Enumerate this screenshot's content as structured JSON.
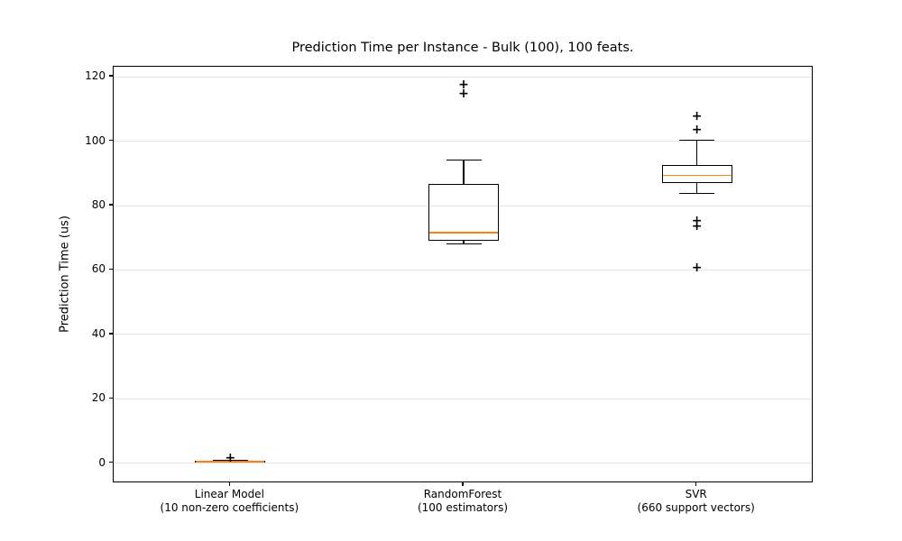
{
  "figure": {
    "background": "#ffffff"
  },
  "chart_data": {
    "type": "boxplot",
    "title": "Prediction Time per Instance - Bulk (100), 100 feats.",
    "ylabel": "Prediction Time (us)",
    "xlabel": "",
    "ylim": [
      -6.2,
      123.1
    ],
    "yticks": [
      0,
      20,
      40,
      60,
      80,
      100,
      120
    ],
    "grid": "horizontal",
    "legend": "none",
    "colors": {
      "median": "#ff7f0e",
      "box": "#000000",
      "whisker": "#000000",
      "flier": "#000000",
      "grid": "#e4e4e4",
      "spine": "#000000"
    },
    "flier_marker": "+",
    "categories": [
      "Linear Model",
      "RandomForest",
      "SVR"
    ],
    "boxes": [
      {
        "category": "Linear Model",
        "category_detail": "(10 non-zero coefficients)",
        "whislo": 0.3,
        "q1": 0.45,
        "med": 0.6,
        "q3": 0.75,
        "whishi": 0.9,
        "fliers": [
          1.5
        ]
      },
      {
        "category": "RandomForest",
        "category_detail": "(100 estimators)",
        "whislo": 68.2,
        "q1": 69.1,
        "med": 71.5,
        "q3": 86.8,
        "whishi": 94.1,
        "fliers": [
          114.8,
          117.6
        ]
      },
      {
        "category": "SVR",
        "category_detail": "(660 support vectors)",
        "whislo": 83.8,
        "q1": 86.9,
        "med": 89.4,
        "q3": 92.5,
        "whishi": 100.3,
        "fliers": [
          107.6,
          103.6,
          75.3,
          73.6,
          60.7
        ]
      }
    ]
  }
}
